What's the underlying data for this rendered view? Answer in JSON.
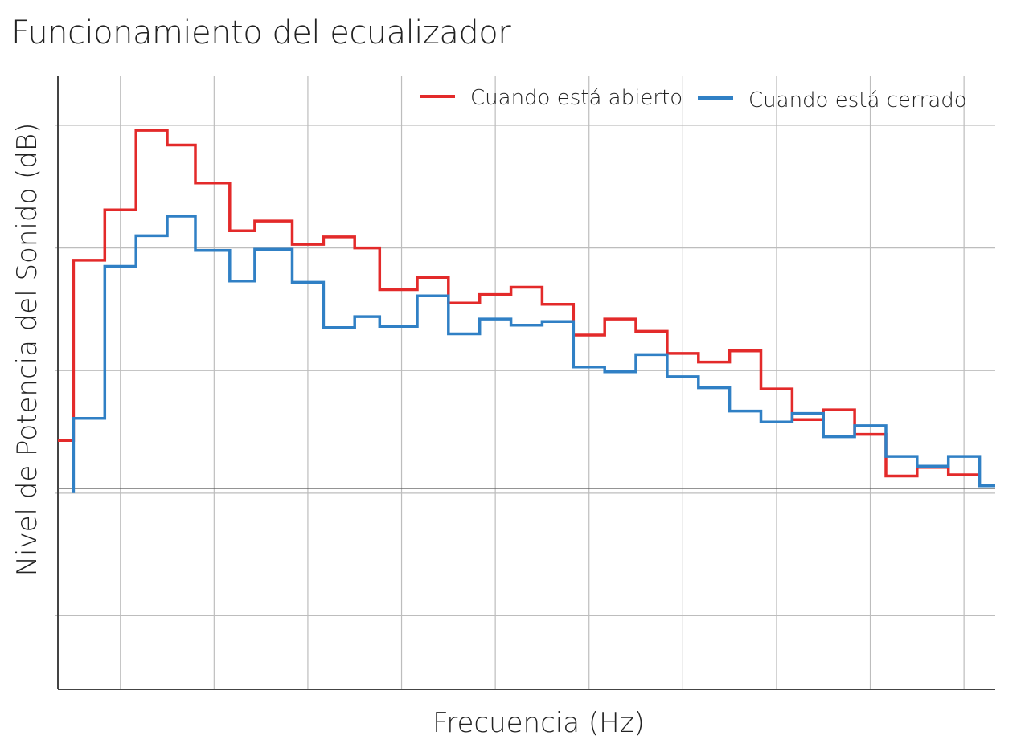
{
  "chart_data": {
    "type": "line",
    "title": "Funcionamiento del ecualizador",
    "xlabel": "Frecuencia (Hz)",
    "ylabel": "Nivel de Potencia del Sonido (dB)",
    "grid": true,
    "legend": "top-right",
    "series": [
      {
        "name": "Cuando está abierto",
        "color": "#e32a2a",
        "x": [
          0,
          0.5,
          1.5,
          2.5,
          3.5,
          4.4,
          5.5,
          6.3,
          7.5,
          8.5,
          9.5,
          10.3,
          11.5,
          12.5,
          13.5,
          14.5,
          15.5,
          16.5,
          17.5,
          18.5,
          19.5,
          20.5,
          21.5,
          22.5,
          23.5,
          24.5,
          25.5,
          26.5,
          27.5,
          28.5,
          29.5
        ],
        "y": [
          4.3,
          19.0,
          23.1,
          29.6,
          28.4,
          25.3,
          21.4,
          22.2,
          20.3,
          20.9,
          20.0,
          16.6,
          17.6,
          15.5,
          16.2,
          16.8,
          15.4,
          12.9,
          14.2,
          13.2,
          11.4,
          10.7,
          11.6,
          8.5,
          6.0,
          6.8,
          4.8,
          1.4,
          2.1,
          1.5,
          null
        ]
      },
      {
        "name": "Cuando está cerrado",
        "color": "#3080c5",
        "x": [
          0.5,
          1.5,
          2.5,
          3.5,
          4.4,
          5.5,
          6.3,
          7.5,
          8.5,
          9.5,
          10.3,
          11.5,
          12.5,
          13.5,
          14.5,
          15.5,
          16.5,
          17.5,
          18.5,
          19.5,
          20.5,
          21.5,
          22.5,
          23.5,
          24.5,
          25.5,
          26.5,
          27.5,
          28.5,
          29.5
        ],
        "y": [
          6.1,
          18.5,
          21.0,
          22.6,
          19.8,
          17.3,
          19.9,
          17.2,
          13.5,
          14.4,
          13.6,
          16.1,
          13.0,
          14.2,
          13.7,
          14.0,
          10.3,
          9.9,
          11.3,
          9.5,
          8.6,
          6.7,
          5.8,
          6.5,
          4.6,
          5.5,
          3.0,
          2.2,
          3.0,
          0.6
        ]
      }
    ],
    "ylim": [
      -16,
      34
    ],
    "xlim": [
      0,
      30
    ]
  }
}
